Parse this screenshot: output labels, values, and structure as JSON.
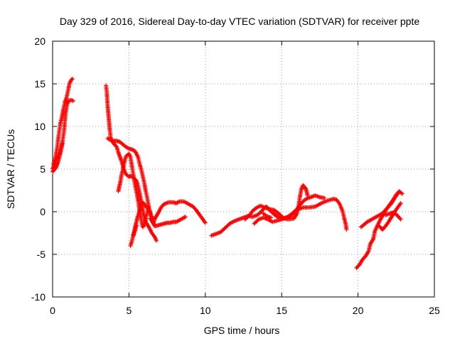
{
  "chart_data": {
    "type": "scatter",
    "title": "Day 329 of 2016, Sidereal Day-to-day VTEC variation (SDTVAR) for receiver ppte",
    "xlabel": "GPS time / hours",
    "ylabel": "SDTVAR / TECUs",
    "xlim": [
      0,
      25
    ],
    "ylim": [
      -10,
      20
    ],
    "xticks": [
      0,
      5,
      10,
      15,
      20,
      25
    ],
    "xtick_labels": [
      "0",
      "5",
      "10",
      "15",
      "20",
      "25"
    ],
    "yticks": [
      -10,
      -5,
      0,
      5,
      10,
      15,
      20
    ],
    "ytick_labels": [
      "-10",
      "-5",
      "0",
      "5",
      "10",
      "15",
      "20"
    ],
    "grid": true,
    "legend": "none",
    "marker": "plus",
    "series_color": "#ff0000",
    "series": [
      {
        "segments": [
          [
            [
              0.0,
              5.0
            ],
            [
              0.1,
              5.5
            ],
            [
              0.2,
              6.5
            ],
            [
              0.3,
              7.6
            ],
            [
              0.4,
              9.0
            ],
            [
              0.5,
              10.3
            ],
            [
              0.6,
              11.0
            ],
            [
              0.7,
              12.0
            ],
            [
              0.8,
              12.8
            ],
            [
              0.9,
              13.3
            ],
            [
              1.0,
              14.1
            ],
            [
              1.1,
              15.0
            ],
            [
              1.2,
              15.4
            ],
            [
              1.3,
              15.6
            ]
          ],
          [
            [
              0.05,
              5.6
            ],
            [
              0.15,
              6.0
            ],
            [
              0.3,
              6.3
            ],
            [
              0.45,
              6.8
            ],
            [
              0.55,
              7.5
            ],
            [
              0.65,
              8.2
            ],
            [
              0.75,
              9.5
            ],
            [
              0.85,
              11.5
            ],
            [
              0.95,
              12.6
            ],
            [
              1.05,
              13.0
            ],
            [
              1.2,
              13.1
            ],
            [
              1.35,
              13.0
            ]
          ],
          [
            [
              0.0,
              4.7
            ],
            [
              0.15,
              5.0
            ],
            [
              0.25,
              5.3
            ],
            [
              0.35,
              5.8
            ],
            [
              0.45,
              6.4
            ],
            [
              0.55,
              7.2
            ],
            [
              0.65,
              8.0
            ]
          ]
        ]
      },
      {
        "segments": [
          [
            [
              3.5,
              14.8
            ],
            [
              3.55,
              14.0
            ],
            [
              3.6,
              12.5
            ],
            [
              3.65,
              11.5
            ],
            [
              3.7,
              10.5
            ],
            [
              3.75,
              9.5
            ],
            [
              3.8,
              8.7
            ],
            [
              3.9,
              8.3
            ],
            [
              4.0,
              8.0
            ],
            [
              4.2,
              7.6
            ],
            [
              4.3,
              7.0
            ],
            [
              4.4,
              6.5
            ],
            [
              4.5,
              6.0
            ],
            [
              4.6,
              5.4
            ],
            [
              4.7,
              4.8
            ],
            [
              4.8,
              4.4
            ],
            [
              5.0,
              4.1
            ],
            [
              5.1,
              4.2
            ],
            [
              5.3,
              4.0
            ],
            [
              5.5,
              3.6
            ],
            [
              5.6,
              3.0
            ],
            [
              5.7,
              2.2
            ],
            [
              5.8,
              1.2
            ],
            [
              5.9,
              0.3
            ],
            [
              6.0,
              -0.6
            ],
            [
              6.1,
              -1.2
            ],
            [
              6.3,
              -1.8
            ],
            [
              6.5,
              -2.5
            ],
            [
              6.7,
              -3.0
            ],
            [
              6.8,
              -3.4
            ]
          ],
          [
            [
              3.6,
              8.6
            ],
            [
              3.8,
              8.4
            ],
            [
              4.0,
              8.3
            ],
            [
              4.2,
              8.3
            ],
            [
              4.4,
              8.2
            ],
            [
              4.6,
              7.9
            ],
            [
              4.8,
              7.6
            ],
            [
              5.0,
              7.4
            ],
            [
              5.2,
              7.3
            ],
            [
              5.4,
              7.1
            ],
            [
              5.6,
              6.4
            ],
            [
              5.7,
              5.6
            ],
            [
              5.8,
              5.0
            ],
            [
              5.9,
              4.2
            ],
            [
              6.0,
              3.4
            ],
            [
              6.1,
              2.4
            ],
            [
              6.2,
              1.6
            ],
            [
              6.3,
              0.5
            ],
            [
              6.4,
              -0.1
            ],
            [
              6.5,
              -0.7
            ],
            [
              6.6,
              -1.4
            ],
            [
              6.7,
              -1.7
            ],
            [
              6.9,
              -1.6
            ],
            [
              7.1,
              -1.5
            ],
            [
              7.3,
              -1.4
            ],
            [
              7.5,
              -1.3
            ],
            [
              7.7,
              -1.3
            ],
            [
              7.9,
              -1.2
            ],
            [
              8.1,
              -1.2
            ],
            [
              8.3,
              -1.0
            ],
            [
              8.5,
              -0.8
            ],
            [
              8.7,
              -0.6
            ]
          ],
          [
            [
              4.3,
              2.4
            ],
            [
              4.35,
              2.8
            ],
            [
              4.4,
              3.2
            ],
            [
              4.45,
              3.6
            ],
            [
              4.5,
              4.2
            ],
            [
              4.6,
              5.0
            ],
            [
              4.7,
              5.8
            ],
            [
              4.8,
              6.5
            ],
            [
              5.0,
              6.8
            ],
            [
              5.1,
              6.4
            ],
            [
              5.2,
              5.3
            ],
            [
              5.3,
              4.2
            ],
            [
              5.4,
              3.1
            ],
            [
              5.5,
              2.3
            ],
            [
              5.6,
              1.3
            ],
            [
              5.7,
              0.1
            ],
            [
              5.8,
              -1.0
            ],
            [
              5.9,
              -1.8
            ],
            [
              6.0,
              -1.6
            ],
            [
              6.1,
              -0.8
            ],
            [
              6.2,
              0.0
            ],
            [
              6.3,
              0.6
            ]
          ],
          [
            [
              5.3,
              -2.8
            ],
            [
              5.4,
              -1.8
            ],
            [
              5.5,
              -1.1
            ],
            [
              5.6,
              -0.4
            ],
            [
              5.7,
              0.2
            ],
            [
              5.8,
              0.8
            ],
            [
              5.9,
              1.1
            ],
            [
              6.0,
              0.9
            ],
            [
              6.1,
              0.6
            ],
            [
              6.2,
              0.5
            ],
            [
              6.3,
              0.2
            ],
            [
              6.4,
              -0.3
            ],
            [
              6.5,
              -0.8
            ],
            [
              6.6,
              -1.3
            ]
          ],
          [
            [
              5.1,
              -4.0
            ],
            [
              5.2,
              -3.4
            ],
            [
              5.3,
              -2.6
            ],
            [
              5.4,
              -2.2
            ],
            [
              5.5,
              -1.6
            ]
          ],
          [
            [
              6.4,
              -0.8
            ],
            [
              6.6,
              -1.4
            ],
            [
              6.7,
              -0.8
            ],
            [
              6.9,
              -0.2
            ],
            [
              7.1,
              0.5
            ],
            [
              7.3,
              0.9
            ],
            [
              7.6,
              1.1
            ],
            [
              7.9,
              1.1
            ],
            [
              8.1,
              1.0
            ],
            [
              8.3,
              1.2
            ],
            [
              8.6,
              1.2
            ],
            [
              8.9,
              0.9
            ],
            [
              9.2,
              0.6
            ],
            [
              9.4,
              0.2
            ],
            [
              9.6,
              -0.3
            ],
            [
              9.8,
              -0.8
            ],
            [
              10.0,
              -1.3
            ]
          ]
        ]
      },
      {
        "segments": [
          [
            [
              10.4,
              -2.8
            ],
            [
              10.7,
              -2.6
            ],
            [
              11.0,
              -2.4
            ],
            [
              11.3,
              -1.9
            ],
            [
              11.6,
              -1.4
            ],
            [
              11.9,
              -1.1
            ],
            [
              12.2,
              -0.9
            ],
            [
              12.5,
              -0.7
            ],
            [
              12.8,
              -0.5
            ],
            [
              13.1,
              -0.6
            ],
            [
              13.4,
              -0.4
            ],
            [
              13.6,
              -0.1
            ],
            [
              13.8,
              0.3
            ],
            [
              14.0,
              0.6
            ],
            [
              14.2,
              0.2
            ],
            [
              14.5,
              -0.3
            ],
            [
              14.8,
              -0.7
            ],
            [
              15.1,
              -0.8
            ],
            [
              15.4,
              -0.6
            ],
            [
              15.7,
              -0.2
            ],
            [
              16.0,
              0.3
            ],
            [
              16.2,
              0.8
            ],
            [
              16.4,
              1.2
            ],
            [
              16.6,
              1.5
            ],
            [
              16.9,
              1.7
            ],
            [
              17.2,
              1.9
            ],
            [
              17.5,
              1.7
            ],
            [
              17.8,
              1.6
            ]
          ],
          [
            [
              12.6,
              -0.9
            ],
            [
              12.9,
              -0.4
            ],
            [
              13.1,
              0.1
            ],
            [
              13.3,
              0.4
            ],
            [
              13.6,
              0.7
            ],
            [
              13.9,
              0.5
            ],
            [
              14.2,
              0.3
            ],
            [
              14.5,
              0.2
            ],
            [
              14.8,
              -0.2
            ],
            [
              15.1,
              -0.7
            ],
            [
              15.4,
              -0.9
            ],
            [
              15.8,
              -0.8
            ],
            [
              16.0,
              -0.2
            ],
            [
              16.1,
              0.6
            ],
            [
              16.2,
              1.8
            ],
            [
              16.3,
              2.7
            ],
            [
              16.4,
              3.1
            ],
            [
              16.5,
              2.9
            ],
            [
              16.6,
              2.6
            ],
            [
              16.7,
              1.9
            ]
          ],
          [
            [
              13.2,
              -1.4
            ],
            [
              13.5,
              -0.9
            ],
            [
              13.8,
              -0.7
            ],
            [
              14.1,
              -0.9
            ],
            [
              14.4,
              -1.2
            ],
            [
              14.8,
              -1.0
            ],
            [
              15.2,
              -0.8
            ],
            [
              15.6,
              -0.5
            ],
            [
              16.0,
              0.2
            ],
            [
              16.4,
              0.5
            ],
            [
              16.8,
              0.5
            ],
            [
              17.2,
              0.6
            ],
            [
              17.6,
              1.0
            ],
            [
              18.0,
              1.3
            ],
            [
              18.4,
              1.5
            ],
            [
              18.6,
              1.4
            ],
            [
              18.8,
              0.9
            ],
            [
              19.0,
              0.0
            ],
            [
              19.1,
              -0.8
            ],
            [
              19.2,
              -1.5
            ],
            [
              19.25,
              -2.1
            ]
          ],
          [
            [
              13.8,
              -0.2
            ],
            [
              14.0,
              -0.5
            ],
            [
              14.3,
              -0.7
            ]
          ]
        ]
      },
      {
        "segments": [
          [
            [
              19.9,
              -6.6
            ],
            [
              20.1,
              -6.2
            ],
            [
              20.3,
              -5.6
            ],
            [
              20.5,
              -5.2
            ],
            [
              20.7,
              -4.6
            ],
            [
              20.8,
              -3.8
            ],
            [
              21.0,
              -3.2
            ],
            [
              21.1,
              -2.3
            ],
            [
              21.3,
              -1.5
            ],
            [
              21.5,
              -0.8
            ],
            [
              21.7,
              -0.2
            ],
            [
              21.9,
              0.4
            ],
            [
              22.1,
              0.9
            ],
            [
              22.3,
              1.4
            ],
            [
              22.5,
              2.0
            ],
            [
              22.7,
              2.4
            ],
            [
              22.9,
              2.1
            ]
          ],
          [
            [
              20.2,
              -1.8
            ],
            [
              20.4,
              -1.5
            ],
            [
              20.6,
              -1.2
            ],
            [
              20.8,
              -1.0
            ],
            [
              21.0,
              -0.8
            ],
            [
              21.2,
              -0.6
            ],
            [
              21.4,
              -0.4
            ],
            [
              21.6,
              -0.2
            ],
            [
              21.8,
              0.2
            ],
            [
              22.0,
              0.6
            ],
            [
              22.2,
              1.0
            ],
            [
              22.4,
              1.6
            ],
            [
              22.6,
              2.1
            ]
          ],
          [
            [
              21.4,
              -1.7
            ],
            [
              21.6,
              -2.1
            ],
            [
              21.8,
              -1.7
            ],
            [
              22.0,
              -1.2
            ],
            [
              22.2,
              -0.6
            ],
            [
              22.4,
              0.0
            ],
            [
              22.6,
              0.5
            ],
            [
              22.8,
              1.0
            ]
          ],
          [
            [
              21.8,
              -0.4
            ],
            [
              22.1,
              -0.2
            ],
            [
              22.3,
              -0.1
            ],
            [
              22.5,
              -0.3
            ],
            [
              22.8,
              -0.9
            ]
          ]
        ]
      }
    ]
  }
}
